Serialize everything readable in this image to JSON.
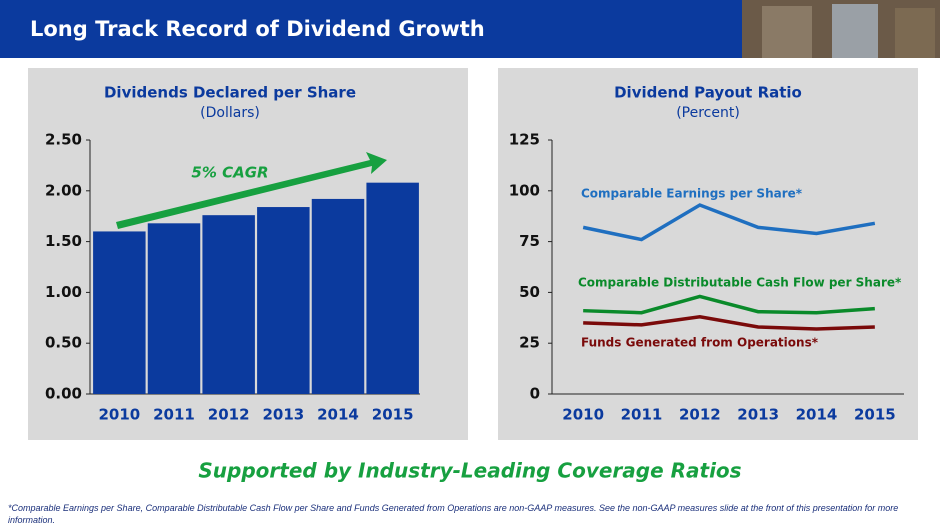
{
  "header": {
    "title": "Long Track Record of Dividend Growth"
  },
  "chart_data": [
    {
      "type": "bar",
      "title": "Dividends Declared per Share",
      "subtitle": "(Dollars)",
      "categories": [
        "2010",
        "2011",
        "2012",
        "2013",
        "2014",
        "2015"
      ],
      "values": [
        1.6,
        1.68,
        1.76,
        1.84,
        1.92,
        2.08
      ],
      "color": "#0b3a9e",
      "ylim": [
        0,
        2.5
      ],
      "yticks": [
        {
          "value": 0,
          "label": "0.00"
        },
        {
          "value": 0.5,
          "label": "0.50"
        },
        {
          "value": 1,
          "label": "1.00"
        },
        {
          "value": 1.5,
          "label": "1.50"
        },
        {
          "value": 2,
          "label": "2.00"
        },
        {
          "value": 2.5,
          "label": "2.50"
        }
      ],
      "annotation": "5% CAGR"
    },
    {
      "type": "line",
      "title": "Dividend Payout Ratio",
      "subtitle": "(Percent)",
      "categories": [
        "2010",
        "2011",
        "2012",
        "2013",
        "2014",
        "2015"
      ],
      "ylim": [
        0,
        125
      ],
      "yticks": [
        0,
        25,
        50,
        75,
        100,
        125
      ],
      "series": [
        {
          "name": "Comparable Earnings per Share*",
          "color": "#1f6fc0",
          "values": [
            82,
            76,
            93,
            82,
            79,
            84
          ]
        },
        {
          "name": "Comparable Distributable Cash Flow per Share*",
          "color": "#0a8a2a",
          "values": [
            41,
            40,
            48,
            40.5,
            40,
            42
          ]
        },
        {
          "name": "Funds Generated from Operations*",
          "color": "#7a0a0a",
          "values": [
            35,
            34,
            38,
            33,
            32,
            33
          ]
        }
      ]
    }
  ],
  "footer": {
    "tagline": "Supported by Industry-Leading Coverage Ratios",
    "note": "*Comparable Earnings per Share, Comparable Distributable Cash Flow per Share and Funds Generated from Operations are non-GAAP measures.  See the non-GAAP measures slide at the front of this presentation for more information."
  }
}
